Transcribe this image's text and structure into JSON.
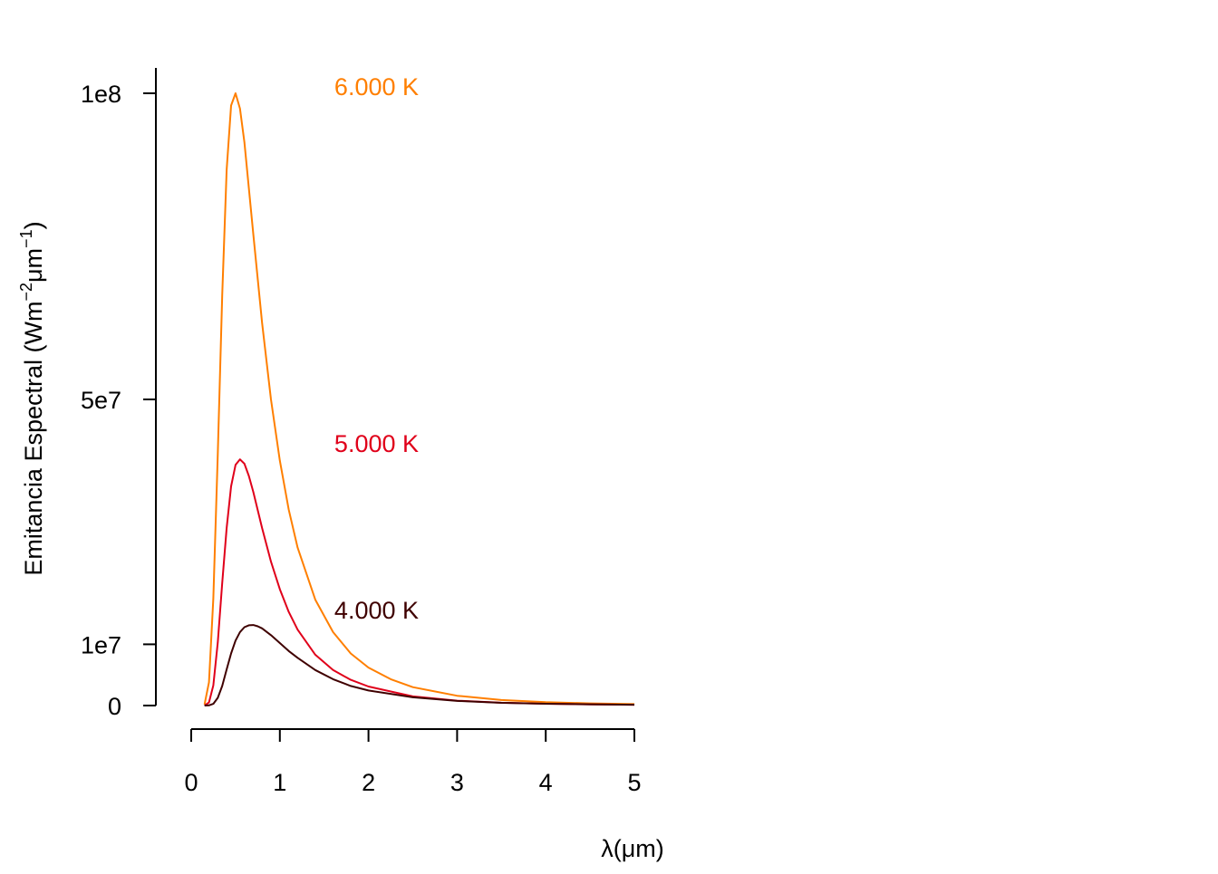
{
  "chart_data": {
    "type": "line",
    "title": "",
    "xlabel": "λ(μm)",
    "ylabel": {
      "text": "Emitancia Espectral (Wm",
      "exp1": "−2",
      "mid": "μm",
      "exp2": "−1",
      "close": ")"
    },
    "xlim": [
      0,
      5
    ],
    "ylim": [
      0,
      100000000
    ],
    "x_ticks": [
      {
        "value": 0,
        "label": "0"
      },
      {
        "value": 1,
        "label": "1"
      },
      {
        "value": 2,
        "label": "2"
      },
      {
        "value": 3,
        "label": "3"
      },
      {
        "value": 4,
        "label": "4"
      },
      {
        "value": 5,
        "label": "5"
      }
    ],
    "y_ticks": [
      {
        "value": 0,
        "label": "0"
      },
      {
        "value": 10000000,
        "label": "1e7"
      },
      {
        "value": 50000000,
        "label": "5e7"
      },
      {
        "value": 100000000,
        "label": "1e8"
      }
    ],
    "grid": false,
    "legend": "inline labels",
    "series": [
      {
        "name": "6.000 K",
        "color": "#FF7F00",
        "x": [
          0.15,
          0.2,
          0.25,
          0.3,
          0.35,
          0.4,
          0.45,
          0.5,
          0.55,
          0.6,
          0.7,
          0.8,
          0.9,
          1.0,
          1.1,
          1.2,
          1.4,
          1.6,
          1.8,
          2.0,
          2.25,
          2.5,
          3.0,
          3.5,
          4.0,
          4.5,
          5.0
        ],
        "y": [
          180000,
          3800000,
          17500000,
          41000000,
          67000000,
          87500000,
          98000000,
          100000000,
          97500000,
          92000000,
          77000000,
          62500000,
          50000000,
          40000000,
          32000000,
          25800000,
          17300000,
          12000000,
          8500000,
          6200000,
          4300000,
          3000000,
          1600000,
          900000,
          550000,
          360000,
          240000
        ]
      },
      {
        "name": "5.000 K",
        "color": "#E0001A",
        "x": [
          0.15,
          0.2,
          0.25,
          0.3,
          0.35,
          0.4,
          0.45,
          0.5,
          0.55,
          0.6,
          0.65,
          0.7,
          0.8,
          0.9,
          1.0,
          1.1,
          1.2,
          1.4,
          1.6,
          1.8,
          2.0,
          2.5,
          3.0,
          3.5,
          4.0,
          4.5,
          5.0
        ],
        "y": [
          10000,
          500000,
          3300000,
          10300000,
          20000000,
          29000000,
          35800000,
          39300000,
          40200000,
          39500000,
          37500000,
          34900000,
          29000000,
          23500000,
          19000000,
          15300000,
          12400000,
          8300000,
          5800000,
          4200000,
          3100000,
          1500000,
          800000,
          460000,
          290000,
          190000,
          130000
        ]
      },
      {
        "name": "4.000 K",
        "color": "#3F0000",
        "x": [
          0.15,
          0.2,
          0.25,
          0.3,
          0.35,
          0.4,
          0.45,
          0.5,
          0.55,
          0.6,
          0.65,
          0.7,
          0.75,
          0.8,
          0.9,
          1.0,
          1.1,
          1.2,
          1.4,
          1.6,
          1.8,
          2.0,
          2.5,
          3.0,
          3.5,
          4.0,
          4.5,
          5.0
        ],
        "y": [
          0,
          30000,
          280000,
          1250000,
          3200000,
          5900000,
          8500000,
          10600000,
          12000000,
          12800000,
          13100000,
          13150000,
          12950000,
          12600000,
          11500000,
          10200000,
          8900000,
          7800000,
          5800000,
          4300000,
          3200000,
          2450000,
          1350000,
          750000,
          450000,
          300000,
          200000,
          140000
        ]
      }
    ],
    "annotations": [
      {
        "text": "6.000 K",
        "series": "6.000 K"
      },
      {
        "text": "5.000 K",
        "series": "5.000 K"
      },
      {
        "text": "4.000 K",
        "series": "4.000 K"
      }
    ]
  }
}
